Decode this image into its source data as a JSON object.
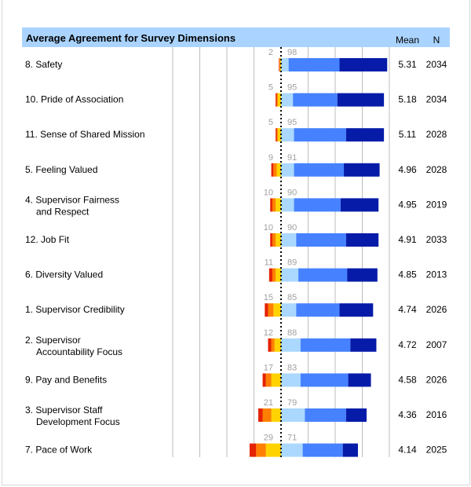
{
  "chart_data": {
    "type": "bar",
    "subtype": "diverging-stacked-horizontal",
    "title": "Average Agreement for Survey Dimensions",
    "column_headers": {
      "mean": "Mean",
      "n": "N"
    },
    "xlim": [
      -100,
      100
    ],
    "grid": true,
    "colors": {
      "negative": [
        "#FFD200",
        "#FF7F00",
        "#E42300"
      ],
      "positive": [
        "#AAD8FF",
        "#4682FF",
        "#061CA8"
      ],
      "header_bg": "#AAD4FF",
      "grid": "#BDBDBD",
      "label_gray": "#A0A0A0"
    },
    "categories": [
      {
        "label": [
          "8. Safety"
        ],
        "neg_total": "2",
        "pos_total": "98",
        "negative": [
          1,
          0.5,
          0.5
        ],
        "positive": [
          7,
          47,
          44
        ],
        "mean": "5.31",
        "n": "2034"
      },
      {
        "label": [
          "10. Pride of Association"
        ],
        "neg_total": "5",
        "pos_total": "95",
        "negative": [
          3,
          1,
          1
        ],
        "positive": [
          11,
          41,
          43
        ],
        "mean": "5.18",
        "n": "2034"
      },
      {
        "label": [
          "11. Sense of Shared Mission"
        ],
        "neg_total": "5",
        "pos_total": "95",
        "negative": [
          3,
          1,
          1
        ],
        "positive": [
          12,
          48,
          35
        ],
        "mean": "5.11",
        "n": "2028"
      },
      {
        "label": [
          "5. Feeling Valued"
        ],
        "neg_total": "9",
        "pos_total": "91",
        "negative": [
          4,
          3,
          2
        ],
        "positive": [
          12,
          46,
          33
        ],
        "mean": "4.96",
        "n": "2028"
      },
      {
        "label": [
          "4. Supervisor Fairness",
          "and Respect"
        ],
        "neg_total": "10",
        "pos_total": "90",
        "negative": [
          5,
          3,
          2
        ],
        "positive": [
          12,
          43,
          35
        ],
        "mean": "4.95",
        "n": "2019"
      },
      {
        "label": [
          "12. Job Fit"
        ],
        "neg_total": "10",
        "pos_total": "90",
        "negative": [
          5,
          3,
          2
        ],
        "positive": [
          14,
          46,
          30
        ],
        "mean": "4.91",
        "n": "2033"
      },
      {
        "label": [
          "6. Diversity Valued"
        ],
        "neg_total": "11",
        "pos_total": "89",
        "negative": [
          5,
          3,
          3
        ],
        "positive": [
          16,
          45,
          28
        ],
        "mean": "4.85",
        "n": "2013"
      },
      {
        "label": [
          "1. Supervisor Credibility"
        ],
        "neg_total": "15",
        "pos_total": "85",
        "negative": [
          7,
          5,
          3
        ],
        "positive": [
          14,
          40,
          31
        ],
        "mean": "4.74",
        "n": "2026"
      },
      {
        "label": [
          "2. Supervisor",
          "Accountability Focus"
        ],
        "neg_total": "12",
        "pos_total": "88",
        "negative": [
          6,
          3,
          3
        ],
        "positive": [
          18,
          46,
          24
        ],
        "mean": "4.72",
        "n": "2007"
      },
      {
        "label": [
          "9. Pay and Benefits"
        ],
        "neg_total": "17",
        "pos_total": "83",
        "negative": [
          9,
          5,
          3
        ],
        "positive": [
          18,
          44,
          21
        ],
        "mean": "4.58",
        "n": "2026"
      },
      {
        "label": [
          "3. Supervisor Staff",
          "Development Focus"
        ],
        "neg_total": "21",
        "pos_total": "79",
        "negative": [
          9,
          8,
          4
        ],
        "positive": [
          22,
          38,
          19
        ],
        "mean": "4.36",
        "n": "2016"
      },
      {
        "label": [
          "7. Pace of Work"
        ],
        "neg_total": "29",
        "pos_total": "71",
        "negative": [
          14,
          9,
          6
        ],
        "positive": [
          20,
          37,
          14
        ],
        "mean": "4.14",
        "n": "2025"
      }
    ]
  }
}
